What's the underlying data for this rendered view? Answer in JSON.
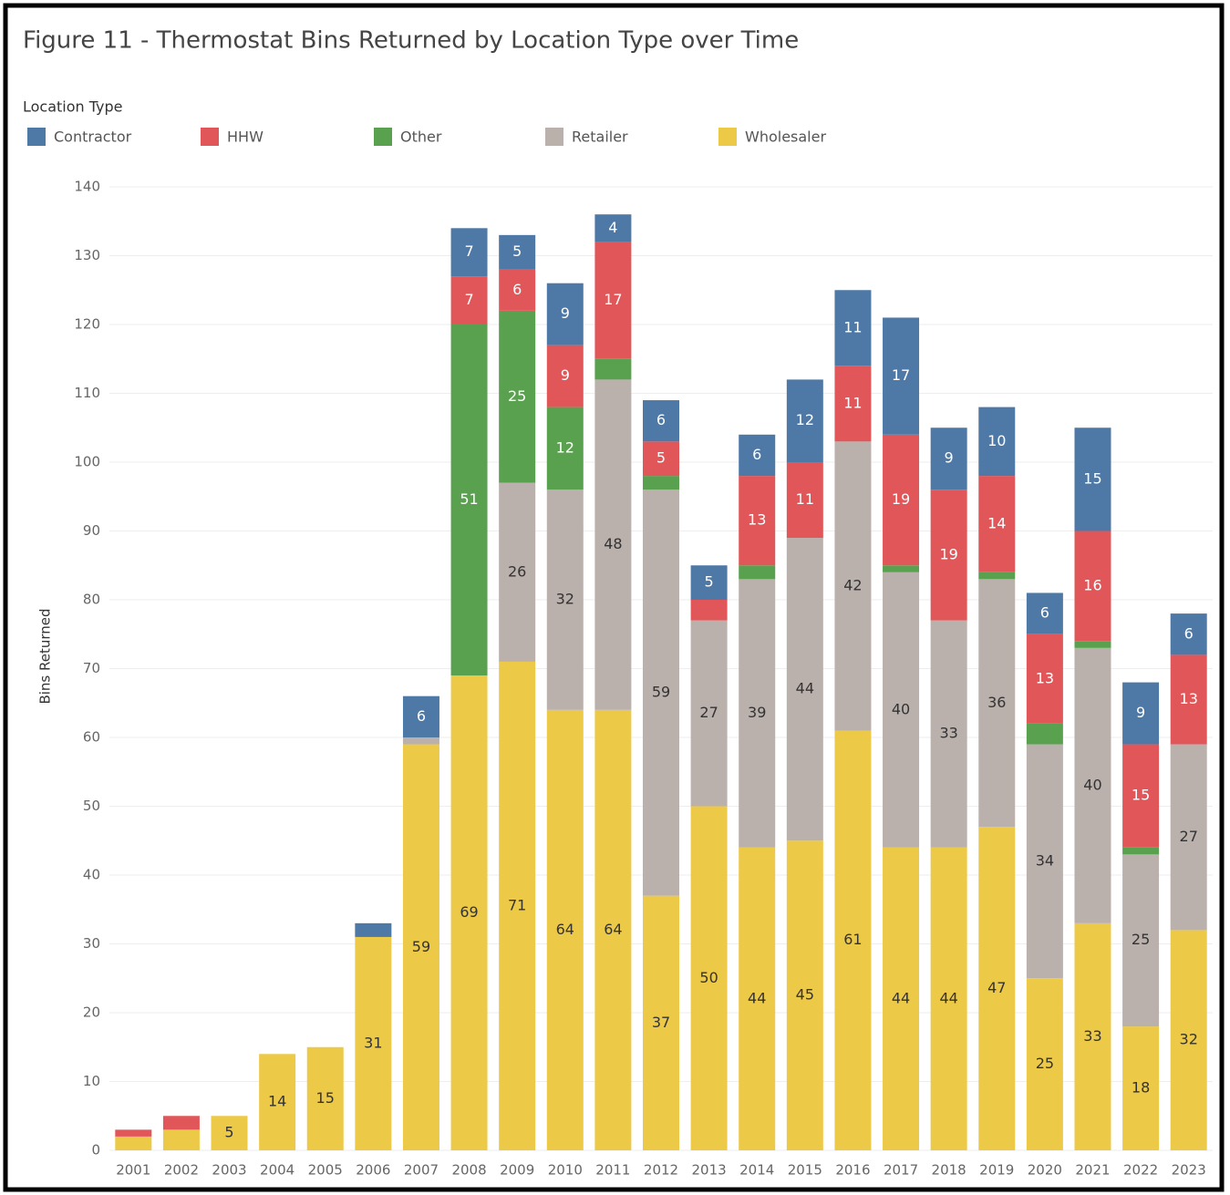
{
  "chart_data": {
    "type": "stacked_bar",
    "title": "Figure 11 - Thermostat Bins Returned by Location Type over Time",
    "legend_title": "Location Type",
    "y_label": "Bins Returned",
    "categories": [
      "2001",
      "2002",
      "2003",
      "2004",
      "2005",
      "2006",
      "2007",
      "2008",
      "2009",
      "2010",
      "2011",
      "2012",
      "2013",
      "2014",
      "2015",
      "2016",
      "2017",
      "2018",
      "2019",
      "2020",
      "2021",
      "2022",
      "2023"
    ],
    "series": [
      {
        "name": "Contractor",
        "color": "#4e79a7",
        "values": [
          0,
          0,
          0,
          0,
          0,
          2,
          6,
          7,
          5,
          9,
          4,
          6,
          5,
          6,
          12,
          11,
          17,
          9,
          10,
          6,
          15,
          9,
          6
        ]
      },
      {
        "name": "HHW",
        "color": "#e15759",
        "values": [
          1,
          2,
          0,
          0,
          0,
          0,
          0,
          7,
          6,
          9,
          17,
          5,
          3,
          13,
          11,
          11,
          19,
          19,
          14,
          13,
          16,
          15,
          13
        ]
      },
      {
        "name": "Other",
        "color": "#59a14f",
        "values": [
          0,
          0,
          0,
          0,
          0,
          0,
          0,
          51,
          25,
          12,
          3,
          2,
          0,
          2,
          0,
          0,
          1,
          0,
          1,
          3,
          1,
          1,
          0
        ]
      },
      {
        "name": "Retailer",
        "color": "#bab0ac",
        "values": [
          0,
          0,
          0,
          0,
          0,
          0,
          1,
          0,
          26,
          32,
          48,
          59,
          27,
          39,
          44,
          42,
          40,
          33,
          36,
          34,
          40,
          25,
          27
        ]
      },
      {
        "name": "Wholesaler",
        "color": "#edc948",
        "values": [
          2,
          3,
          5,
          14,
          15,
          31,
          59,
          69,
          71,
          64,
          64,
          37,
          50,
          44,
          45,
          61,
          44,
          44,
          47,
          25,
          33,
          18,
          32
        ]
      }
    ],
    "ylim": [
      0,
      140
    ],
    "yticks": [
      0,
      10,
      20,
      30,
      40,
      50,
      60,
      70,
      80,
      90,
      100,
      110,
      120,
      130,
      140
    ],
    "grid": true
  }
}
